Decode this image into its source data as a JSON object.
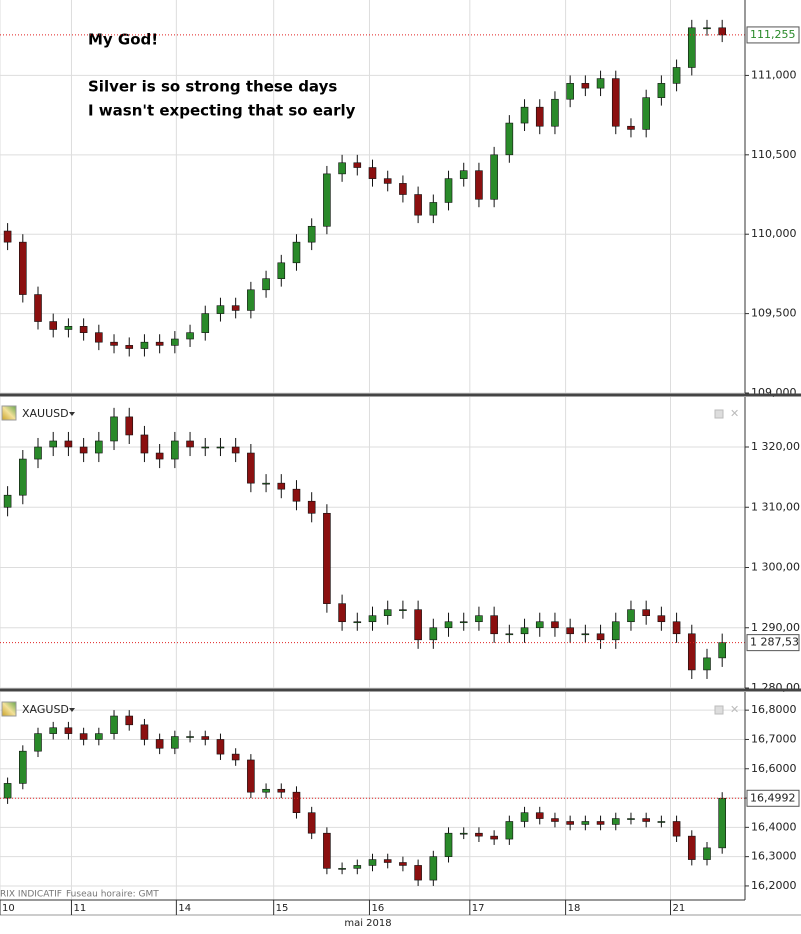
{
  "chart_data": [
    {
      "type": "candlestick",
      "ylim": [
        109.0,
        111.475
      ],
      "yticks": [
        {
          "value": 109.0,
          "label": "109,000"
        },
        {
          "value": 109.5,
          "label": "109,500"
        },
        {
          "value": 110.0,
          "label": "110,000"
        },
        {
          "value": 110.5,
          "label": "110,500"
        },
        {
          "value": 111.0,
          "label": "111,000"
        }
      ],
      "annotations": [
        "My God!",
        "Silver is so strong these days",
        "I wasn't expecting that so early"
      ],
      "last_price": {
        "value": 111.255,
        "label": "111,255"
      },
      "open": [
        110.02,
        109.95,
        109.62,
        109.45,
        109.4,
        109.42,
        109.38,
        109.32,
        109.3,
        109.28,
        109.32,
        109.3,
        109.34,
        109.38,
        109.5,
        109.55,
        109.52,
        109.65,
        109.72,
        109.82,
        109.95,
        110.05,
        110.38,
        110.45,
        110.42,
        110.35,
        110.32,
        110.25,
        110.12,
        110.2,
        110.35,
        110.4,
        110.22,
        110.5,
        110.7,
        110.8,
        110.68,
        110.85,
        110.95,
        110.92,
        110.98,
        110.68,
        110.66,
        110.86,
        110.95,
        111.05,
        111.3,
        111.3
      ],
      "high": [
        110.07,
        110.0,
        109.67,
        109.5,
        109.47,
        109.47,
        109.43,
        109.37,
        109.35,
        109.37,
        109.37,
        109.39,
        109.43,
        109.55,
        109.6,
        109.6,
        109.7,
        109.77,
        109.87,
        110.0,
        110.1,
        110.43,
        110.5,
        110.5,
        110.47,
        110.4,
        110.37,
        110.3,
        110.25,
        110.4,
        110.45,
        110.45,
        110.55,
        110.75,
        110.85,
        110.85,
        110.9,
        111.0,
        111.0,
        111.03,
        111.03,
        110.73,
        110.91,
        111.0,
        111.1,
        111.35,
        111.35,
        111.35
      ],
      "low": [
        109.9,
        109.57,
        109.4,
        109.35,
        109.35,
        109.33,
        109.27,
        109.25,
        109.23,
        109.23,
        109.25,
        109.25,
        109.29,
        109.33,
        109.45,
        109.47,
        109.47,
        109.6,
        109.67,
        109.77,
        109.9,
        110.0,
        110.33,
        110.37,
        110.3,
        110.27,
        110.2,
        110.07,
        110.07,
        110.15,
        110.3,
        110.17,
        110.17,
        110.45,
        110.65,
        110.63,
        110.63,
        110.8,
        110.87,
        110.87,
        110.63,
        110.61,
        110.61,
        110.81,
        110.9,
        111.0,
        111.25,
        111.21
      ],
      "close": [
        109.95,
        109.62,
        109.45,
        109.4,
        109.42,
        109.38,
        109.32,
        109.3,
        109.28,
        109.32,
        109.3,
        109.34,
        109.38,
        109.5,
        109.55,
        109.52,
        109.65,
        109.72,
        109.82,
        109.95,
        110.05,
        110.38,
        110.45,
        110.42,
        110.35,
        110.32,
        110.25,
        110.12,
        110.2,
        110.35,
        110.4,
        110.22,
        110.5,
        110.7,
        110.8,
        110.68,
        110.85,
        110.95,
        110.92,
        110.98,
        110.68,
        110.66,
        110.86,
        110.95,
        111.05,
        111.3,
        111.3,
        111.255
      ]
    },
    {
      "type": "candlestick",
      "title": "XAUUSD",
      "ylim": [
        1280,
        1328.3
      ],
      "yticks": [
        {
          "value": 1280,
          "label": "1 280,00"
        },
        {
          "value": 1290,
          "label": "1 290,00"
        },
        {
          "value": 1300,
          "label": "1 300,00"
        },
        {
          "value": 1310,
          "label": "1 310,00"
        },
        {
          "value": 1320,
          "label": "1 320,00"
        }
      ],
      "last_price": {
        "value": 1287.53,
        "label": "1 287,53"
      },
      "open": [
        1310,
        1312,
        1318,
        1320,
        1321,
        1320,
        1319,
        1321,
        1325,
        1322,
        1319,
        1318,
        1321,
        1320,
        1320,
        1320,
        1319,
        1314,
        1314,
        1313,
        1311,
        1309,
        1294,
        1291,
        1291,
        1292,
        1293,
        1293,
        1288,
        1290,
        1291,
        1291,
        1292,
        1289,
        1289,
        1290,
        1291,
        1290,
        1289,
        1289,
        1288,
        1291,
        1293,
        1292,
        1291,
        1289,
        1283,
        1285
      ],
      "high": [
        1313.5,
        1319.5,
        1321.5,
        1322.5,
        1322.5,
        1321.5,
        1322.5,
        1326.5,
        1326.5,
        1323.5,
        1320.5,
        1322.5,
        1322.5,
        1321.5,
        1321.5,
        1321.5,
        1320.5,
        1315.5,
        1315.5,
        1314.5,
        1312.5,
        1310.5,
        1295.5,
        1292.5,
        1293.5,
        1294.5,
        1294.5,
        1294.5,
        1291.5,
        1292.5,
        1292.5,
        1293.5,
        1293.5,
        1290.5,
        1291.5,
        1292.5,
        1292.5,
        1291.5,
        1290.5,
        1290.5,
        1292.5,
        1294.5,
        1294.5,
        1293.5,
        1292.5,
        1290.5,
        1286.5,
        1289.03
      ],
      "low": [
        1308.5,
        1310.5,
        1316.5,
        1318.5,
        1318.5,
        1317.5,
        1317.5,
        1319.5,
        1320.5,
        1317.5,
        1316.5,
        1316.5,
        1318.5,
        1318.5,
        1318.5,
        1317.5,
        1312.5,
        1312.5,
        1311.5,
        1309.5,
        1307.5,
        1292.5,
        1289.5,
        1289.5,
        1289.5,
        1290.5,
        1291.5,
        1286.5,
        1286.5,
        1288.5,
        1289.5,
        1289.5,
        1287.5,
        1287.5,
        1287.5,
        1288.5,
        1288.5,
        1287.5,
        1287.5,
        1286.5,
        1286.5,
        1289.5,
        1290.5,
        1289.5,
        1287.5,
        1281.5,
        1281.5,
        1283.5
      ],
      "close": [
        1312,
        1318,
        1320,
        1321,
        1320,
        1319,
        1321,
        1325,
        1322,
        1319,
        1318,
        1321,
        1320,
        1320,
        1320,
        1319,
        1314,
        1314,
        1313,
        1311,
        1309,
        1294,
        1291,
        1291,
        1292,
        1293,
        1293,
        1288,
        1290,
        1291,
        1291,
        1292,
        1289,
        1289,
        1290,
        1291,
        1290,
        1289,
        1289,
        1288,
        1291,
        1293,
        1292,
        1291,
        1289,
        1283,
        1285,
        1287.53
      ]
    },
    {
      "type": "candlestick",
      "title": "XAGUSD",
      "ylim": [
        16.152,
        16.862
      ],
      "yticks": [
        {
          "value": 16.2,
          "label": "16,2000"
        },
        {
          "value": 16.3,
          "label": "16,3000"
        },
        {
          "value": 16.4,
          "label": "16,4000"
        },
        {
          "value": 16.5,
          "label": "16,5000"
        },
        {
          "value": 16.6,
          "label": "16,6000"
        },
        {
          "value": 16.7,
          "label": "16,7000"
        },
        {
          "value": 16.8,
          "label": "16,8000"
        }
      ],
      "last_price": {
        "value": 16.4992,
        "label": "16,4992"
      },
      "open": [
        16.5,
        16.55,
        16.66,
        16.72,
        16.74,
        16.72,
        16.7,
        16.72,
        16.78,
        16.75,
        16.7,
        16.67,
        16.71,
        16.71,
        16.7,
        16.65,
        16.63,
        16.52,
        16.53,
        16.52,
        16.45,
        16.38,
        16.26,
        16.26,
        16.27,
        16.29,
        16.28,
        16.27,
        16.22,
        16.3,
        16.38,
        16.38,
        16.37,
        16.36,
        16.42,
        16.45,
        16.43,
        16.42,
        16.41,
        16.42,
        16.41,
        16.43,
        16.43,
        16.42,
        16.42,
        16.37,
        16.29,
        16.33
      ],
      "high": [
        16.57,
        16.68,
        16.74,
        16.76,
        16.76,
        16.74,
        16.74,
        16.8,
        16.8,
        16.77,
        16.72,
        16.73,
        16.73,
        16.73,
        16.72,
        16.67,
        16.65,
        16.55,
        16.55,
        16.54,
        16.47,
        16.4,
        16.28,
        16.29,
        16.31,
        16.31,
        16.3,
        16.29,
        16.32,
        16.4,
        16.4,
        16.4,
        16.39,
        16.44,
        16.47,
        16.47,
        16.45,
        16.44,
        16.44,
        16.44,
        16.45,
        16.45,
        16.45,
        16.44,
        16.44,
        16.39,
        16.35,
        16.52
      ],
      "low": [
        16.48,
        16.53,
        16.64,
        16.7,
        16.7,
        16.68,
        16.68,
        16.7,
        16.73,
        16.68,
        16.65,
        16.65,
        16.69,
        16.68,
        16.63,
        16.61,
        16.5,
        16.5,
        16.5,
        16.43,
        16.36,
        16.24,
        16.24,
        16.24,
        16.25,
        16.26,
        16.25,
        16.2,
        16.2,
        16.28,
        16.36,
        16.35,
        16.34,
        16.34,
        16.4,
        16.41,
        16.4,
        16.39,
        16.39,
        16.39,
        16.39,
        16.41,
        16.4,
        16.4,
        16.35,
        16.27,
        16.27,
        16.31
      ],
      "close": [
        16.55,
        16.66,
        16.72,
        16.74,
        16.72,
        16.7,
        16.72,
        16.78,
        16.75,
        16.7,
        16.67,
        16.71,
        16.71,
        16.7,
        16.65,
        16.63,
        16.52,
        16.53,
        16.52,
        16.45,
        16.38,
        16.26,
        16.26,
        16.27,
        16.29,
        16.28,
        16.27,
        16.22,
        16.3,
        16.38,
        16.38,
        16.37,
        16.36,
        16.42,
        16.45,
        16.43,
        16.42,
        16.41,
        16.42,
        16.41,
        16.43,
        16.43,
        16.42,
        16.42,
        16.37,
        16.29,
        16.33,
        16.4992
      ]
    }
  ],
  "x_axis": {
    "xlim": [
      0,
      49
    ],
    "label": "mai 2018",
    "xticks": [
      {
        "value": 0,
        "label": "10"
      },
      {
        "value": 4.7,
        "label": "11"
      },
      {
        "value": 11.6,
        "label": "14"
      },
      {
        "value": 18.0,
        "label": "15"
      },
      {
        "value": 24.3,
        "label": "16"
      },
      {
        "value": 30.9,
        "label": "17"
      },
      {
        "value": 37.2,
        "label": "18"
      },
      {
        "value": 44.1,
        "label": "21"
      }
    ]
  },
  "footer": {
    "source": "RIX INDICATIF",
    "timezone": "Fuseau horaire: GMT"
  },
  "style": {
    "up_color": "#2a8a2a",
    "down_color": "#8b1010",
    "price_line_color": "#e02020",
    "grid": true
  }
}
